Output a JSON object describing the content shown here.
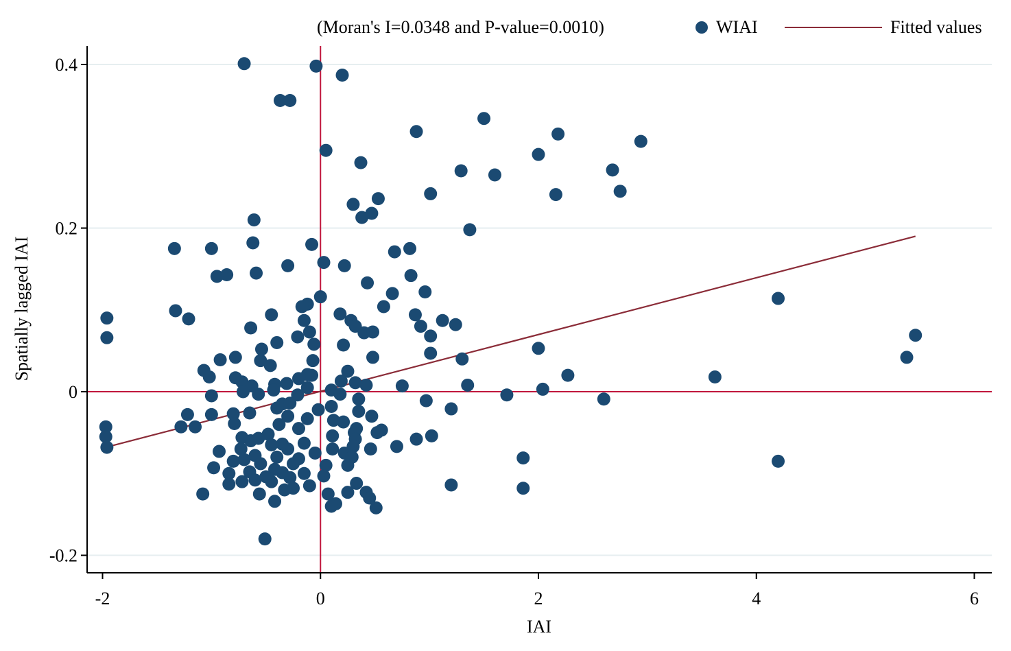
{
  "chart_data": {
    "type": "scatter",
    "title": "",
    "xlabel": "IAI",
    "ylabel": "Spatially lagged IAI",
    "xlim": [
      -2.15,
      6.15
    ],
    "ylim": [
      -0.225,
      0.425
    ],
    "x_ticks": [
      -2,
      0,
      2,
      4,
      6
    ],
    "x_tick_labels": [
      "-2",
      "0",
      "2",
      "4",
      "6"
    ],
    "y_ticks": [
      -0.2,
      0,
      0.2,
      0.4
    ],
    "y_tick_labels": [
      "-0.2",
      "0",
      "0.2",
      "0.4"
    ],
    "grid": "horizontal",
    "legend_position": "top",
    "annotation": "(Moran's I=0.0348 and P-value=0.0010)",
    "reference_lines": {
      "x": 0,
      "y": 0,
      "color": "#c0163c"
    },
    "series": [
      {
        "name": "WIAI",
        "type": "scatter",
        "color": "#1b4a72",
        "points": [
          [
            -0.7,
            0.401
          ],
          [
            -0.04,
            0.398
          ],
          [
            0.2,
            0.387
          ],
          [
            -0.37,
            0.356
          ],
          [
            -0.28,
            0.356
          ],
          [
            1.5,
            0.334
          ],
          [
            0.88,
            0.318
          ],
          [
            2.18,
            0.315
          ],
          [
            2.94,
            0.306
          ],
          [
            0.05,
            0.295
          ],
          [
            2.0,
            0.29
          ],
          [
            0.37,
            0.28
          ],
          [
            1.29,
            0.27
          ],
          [
            2.68,
            0.271
          ],
          [
            1.6,
            0.265
          ],
          [
            2.75,
            0.245
          ],
          [
            1.01,
            0.242
          ],
          [
            2.16,
            0.241
          ],
          [
            0.53,
            0.236
          ],
          [
            0.3,
            0.229
          ],
          [
            0.47,
            0.218
          ],
          [
            0.38,
            0.213
          ],
          [
            -0.61,
            0.21
          ],
          [
            1.37,
            0.198
          ],
          [
            -0.62,
            0.182
          ],
          [
            -0.08,
            0.18
          ],
          [
            -1.34,
            0.175
          ],
          [
            -1.0,
            0.175
          ],
          [
            0.68,
            0.171
          ],
          [
            0.82,
            0.175
          ],
          [
            0.03,
            0.158
          ],
          [
            -0.3,
            0.154
          ],
          [
            0.22,
            0.154
          ],
          [
            -0.59,
            0.145
          ],
          [
            -0.95,
            0.141
          ],
          [
            -0.86,
            0.143
          ],
          [
            0.83,
            0.142
          ],
          [
            0.43,
            0.133
          ],
          [
            0.96,
            0.122
          ],
          [
            0.66,
            0.12
          ],
          [
            0.0,
            0.116
          ],
          [
            -0.12,
            0.107
          ],
          [
            -0.17,
            0.104
          ],
          [
            0.58,
            0.104
          ],
          [
            4.2,
            0.114
          ],
          [
            -1.33,
            0.099
          ],
          [
            -1.21,
            0.089
          ],
          [
            -0.45,
            0.094
          ],
          [
            0.18,
            0.095
          ],
          [
            0.87,
            0.094
          ],
          [
            -0.15,
            0.087
          ],
          [
            0.28,
            0.087
          ],
          [
            1.12,
            0.087
          ],
          [
            1.24,
            0.082
          ],
          [
            0.92,
            0.08
          ],
          [
            0.32,
            0.08
          ],
          [
            -0.64,
            0.078
          ],
          [
            -0.1,
            0.073
          ],
          [
            0.4,
            0.072
          ],
          [
            0.48,
            0.073
          ],
          [
            1.01,
            0.068
          ],
          [
            5.46,
            0.069
          ],
          [
            -0.21,
            0.067
          ],
          [
            -0.4,
            0.06
          ],
          [
            -0.06,
            0.058
          ],
          [
            0.21,
            0.057
          ],
          [
            -0.54,
            0.052
          ],
          [
            2.0,
            0.053
          ],
          [
            1.01,
            0.047
          ],
          [
            0.48,
            0.042
          ],
          [
            -0.78,
            0.042
          ],
          [
            5.38,
            0.042
          ],
          [
            1.3,
            0.04
          ],
          [
            -0.07,
            0.038
          ],
          [
            -0.92,
            0.039
          ],
          [
            -0.55,
            0.038
          ],
          [
            -0.46,
            0.032
          ],
          [
            -1.07,
            0.026
          ],
          [
            -1.02,
            0.018
          ],
          [
            0.25,
            0.025
          ],
          [
            -0.12,
            0.021
          ],
          [
            -0.08,
            0.02
          ],
          [
            2.27,
            0.02
          ],
          [
            3.62,
            0.018
          ],
          [
            -0.78,
            0.017
          ],
          [
            -0.2,
            0.016
          ],
          [
            0.19,
            0.013
          ],
          [
            -0.72,
            0.012
          ],
          [
            0.32,
            0.011
          ],
          [
            0.42,
            0.008
          ],
          [
            -0.31,
            0.01
          ],
          [
            -0.42,
            0.009
          ],
          [
            0.75,
            0.007
          ],
          [
            1.35,
            0.008
          ],
          [
            -0.63,
            0.007
          ],
          [
            -0.12,
            0.005
          ],
          [
            2.04,
            0.003
          ],
          [
            0.1,
            0.002
          ],
          [
            -0.43,
            0.002
          ],
          [
            -0.71,
            0.0
          ],
          [
            -0.57,
            -0.003
          ],
          [
            0.18,
            -0.003
          ],
          [
            -1.0,
            -0.005
          ],
          [
            1.71,
            -0.004
          ],
          [
            -0.21,
            -0.004
          ],
          [
            0.35,
            -0.009
          ],
          [
            0.97,
            -0.011
          ],
          [
            2.6,
            -0.009
          ],
          [
            -0.35,
            -0.015
          ],
          [
            -0.28,
            -0.014
          ],
          [
            0.1,
            -0.018
          ],
          [
            -0.4,
            -0.02
          ],
          [
            1.2,
            -0.021
          ],
          [
            -0.02,
            -0.022
          ],
          [
            0.35,
            -0.024
          ],
          [
            -0.65,
            -0.026
          ],
          [
            -1.0,
            -0.028
          ],
          [
            -1.22,
            -0.028
          ],
          [
            -0.8,
            -0.027
          ],
          [
            -0.3,
            -0.03
          ],
          [
            0.47,
            -0.03
          ],
          [
            -0.12,
            -0.033
          ],
          [
            0.12,
            -0.035
          ],
          [
            0.21,
            -0.037
          ],
          [
            -0.38,
            -0.04
          ],
          [
            -0.79,
            -0.039
          ],
          [
            -1.15,
            -0.043
          ],
          [
            -1.28,
            -0.043
          ],
          [
            0.33,
            -0.045
          ],
          [
            -0.2,
            -0.045
          ],
          [
            0.56,
            -0.047
          ],
          [
            0.31,
            -0.05
          ],
          [
            0.52,
            -0.05
          ],
          [
            -0.48,
            -0.052
          ],
          [
            1.02,
            -0.054
          ],
          [
            0.11,
            -0.054
          ],
          [
            -0.57,
            -0.057
          ],
          [
            -0.72,
            -0.056
          ],
          [
            0.32,
            -0.058
          ],
          [
            0.88,
            -0.058
          ],
          [
            -0.64,
            -0.06
          ],
          [
            -0.15,
            -0.063
          ],
          [
            -0.35,
            -0.064
          ],
          [
            -0.45,
            -0.065
          ],
          [
            0.3,
            -0.067
          ],
          [
            0.7,
            -0.067
          ],
          [
            0.46,
            -0.07
          ],
          [
            -0.73,
            -0.07
          ],
          [
            -0.3,
            -0.07
          ],
          [
            0.11,
            -0.07
          ],
          [
            -0.93,
            -0.073
          ],
          [
            -0.05,
            -0.075
          ],
          [
            0.22,
            -0.075
          ],
          [
            -0.6,
            -0.078
          ],
          [
            -0.4,
            -0.08
          ],
          [
            0.29,
            -0.08
          ],
          [
            1.86,
            -0.081
          ],
          [
            -0.2,
            -0.082
          ],
          [
            -0.7,
            -0.083
          ],
          [
            -0.8,
            -0.085
          ],
          [
            4.2,
            -0.085
          ],
          [
            -0.55,
            -0.088
          ],
          [
            -0.25,
            -0.088
          ],
          [
            0.05,
            -0.09
          ],
          [
            0.25,
            -0.09
          ],
          [
            -0.98,
            -0.093
          ],
          [
            -0.42,
            -0.095
          ],
          [
            -0.65,
            -0.098
          ],
          [
            -0.35,
            -0.099
          ],
          [
            -0.84,
            -0.1
          ],
          [
            -0.15,
            -0.1
          ],
          [
            0.03,
            -0.103
          ],
          [
            -0.5,
            -0.104
          ],
          [
            -0.28,
            -0.105
          ],
          [
            -0.6,
            -0.108
          ],
          [
            -0.72,
            -0.11
          ],
          [
            -0.45,
            -0.11
          ],
          [
            0.33,
            -0.112
          ],
          [
            -0.84,
            -0.113
          ],
          [
            1.2,
            -0.114
          ],
          [
            -0.1,
            -0.115
          ],
          [
            -0.25,
            -0.118
          ],
          [
            1.86,
            -0.118
          ],
          [
            -0.33,
            -0.12
          ],
          [
            -1.08,
            -0.125
          ],
          [
            -0.56,
            -0.125
          ],
          [
            0.07,
            -0.125
          ],
          [
            0.25,
            -0.123
          ],
          [
            0.42,
            -0.123
          ],
          [
            0.45,
            -0.13
          ],
          [
            -0.42,
            -0.134
          ],
          [
            0.14,
            -0.137
          ],
          [
            0.1,
            -0.14
          ],
          [
            0.51,
            -0.142
          ],
          [
            -0.51,
            -0.18
          ],
          [
            -1.96,
            0.09
          ],
          [
            -1.96,
            0.066
          ],
          [
            -1.97,
            -0.043
          ],
          [
            -1.97,
            -0.055
          ],
          [
            -1.96,
            -0.068
          ]
        ]
      },
      {
        "name": "Fitted values",
        "type": "line",
        "color": "#8b2c38",
        "points": [
          [
            -1.97,
            -0.068
          ],
          [
            5.46,
            0.19
          ]
        ]
      }
    ]
  }
}
